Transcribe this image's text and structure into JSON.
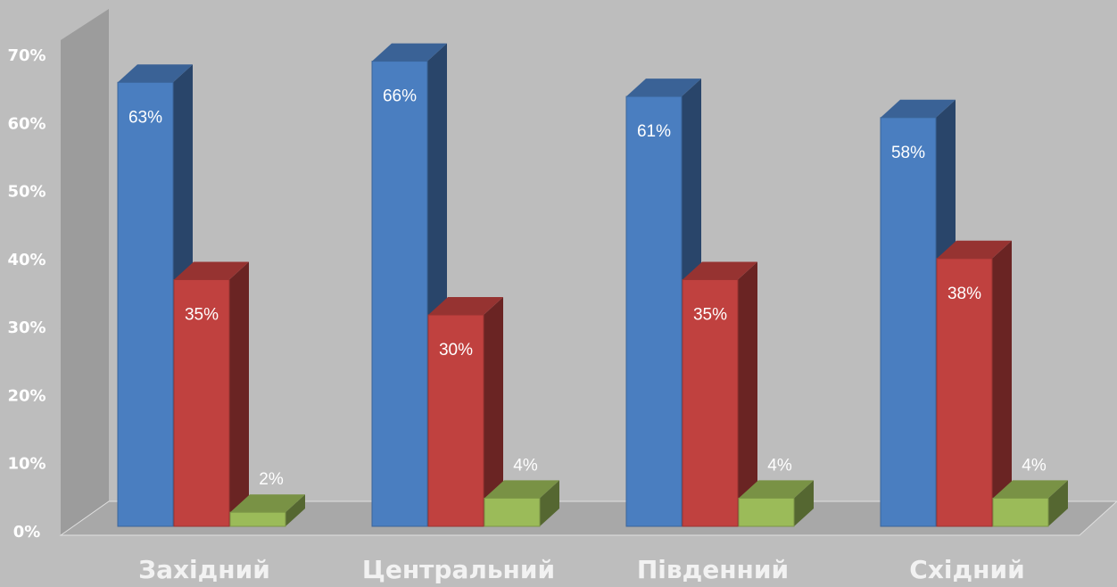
{
  "chart_data": {
    "type": "bar3d",
    "categories": [
      "Західний",
      "Центральний",
      "Південний",
      "Східний"
    ],
    "series": [
      {
        "color": "#4a7ec0",
        "values": [
          63,
          66,
          61,
          58
        ],
        "value_labels": [
          "63%",
          "66%",
          "61%",
          "58%"
        ]
      },
      {
        "color": "#c0413f",
        "values": [
          35,
          30,
          35,
          38
        ],
        "value_labels": [
          "35%",
          "30%",
          "35%",
          "38%"
        ]
      },
      {
        "color": "#9bbb59",
        "values": [
          2,
          4,
          4,
          4
        ],
        "value_labels": [
          "2%",
          "4%",
          "4%",
          "4%"
        ]
      }
    ],
    "ylim": [
      0,
      70
    ],
    "yticks": [
      {
        "value": 0,
        "label": "0%"
      },
      {
        "value": 10,
        "label": "10%"
      },
      {
        "value": 20,
        "label": "20%"
      },
      {
        "value": 30,
        "label": "30%"
      },
      {
        "value": 40,
        "label": "40%"
      },
      {
        "value": 50,
        "label": "50%"
      },
      {
        "value": 60,
        "label": "60%"
      },
      {
        "value": 70,
        "label": "70%"
      }
    ]
  }
}
